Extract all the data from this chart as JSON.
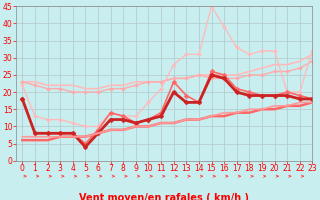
{
  "xlabel": "Vent moyen/en rafales ( km/h )",
  "background_color": "#c8eef0",
  "grid_color": "#b0c8ca",
  "xlim": [
    -0.5,
    23
  ],
  "ylim": [
    0,
    45
  ],
  "yticks": [
    0,
    5,
    10,
    15,
    20,
    25,
    30,
    35,
    40,
    45
  ],
  "xticks": [
    0,
    1,
    2,
    3,
    4,
    5,
    6,
    7,
    8,
    9,
    10,
    11,
    12,
    13,
    14,
    15,
    16,
    17,
    18,
    19,
    20,
    21,
    22,
    23
  ],
  "series": [
    {
      "x": [
        0,
        1,
        2,
        3,
        4,
        5,
        6,
        7,
        8,
        9,
        10,
        11,
        12,
        13,
        14,
        15,
        16,
        17,
        18,
        19,
        20,
        21,
        22,
        23
      ],
      "y": [
        23,
        23,
        22,
        22,
        22,
        21,
        21,
        22,
        22,
        23,
        23,
        23,
        24,
        24,
        25,
        25,
        25,
        25,
        26,
        27,
        28,
        28,
        29,
        31
      ],
      "color": "#ffbbbb",
      "linewidth": 1.2,
      "marker": null,
      "markersize": 0
    },
    {
      "x": [
        0,
        1,
        2,
        3,
        4,
        5,
        6,
        7,
        8,
        9,
        10,
        11,
        12,
        13,
        14,
        15,
        16,
        17,
        18,
        19,
        20,
        21,
        22,
        23
      ],
      "y": [
        23,
        22,
        21,
        21,
        20,
        20,
        20,
        21,
        21,
        22,
        23,
        23,
        24,
        24,
        25,
        24,
        24,
        24,
        25,
        25,
        26,
        26,
        27,
        29
      ],
      "color": "#ffaaaa",
      "linewidth": 1.0,
      "marker": "D",
      "markersize": 2.0
    },
    {
      "x": [
        0,
        1,
        2,
        3,
        4,
        5,
        6,
        7,
        8,
        9,
        10,
        11,
        12,
        13,
        14,
        15,
        16,
        17,
        18,
        19,
        20,
        21,
        22,
        23
      ],
      "y": [
        22,
        13,
        12,
        12,
        11,
        10,
        10,
        14,
        13,
        13,
        17,
        21,
        28,
        31,
        31,
        45,
        39,
        33,
        31,
        32,
        32,
        20,
        20,
        32
      ],
      "color": "#ffbbbb",
      "linewidth": 1.0,
      "marker": "D",
      "markersize": 2.0
    },
    {
      "x": [
        0,
        1,
        2,
        3,
        4,
        5,
        6,
        7,
        8,
        9,
        10,
        11,
        12,
        13,
        14,
        15,
        16,
        17,
        18,
        19,
        20,
        21,
        22,
        23
      ],
      "y": [
        18,
        8,
        8,
        8,
        8,
        5,
        9,
        14,
        13,
        11,
        12,
        14,
        23,
        19,
        17,
        26,
        25,
        21,
        20,
        19,
        19,
        20,
        19,
        18
      ],
      "color": "#ff6666",
      "linewidth": 1.2,
      "marker": "D",
      "markersize": 2.5
    },
    {
      "x": [
        0,
        1,
        2,
        3,
        4,
        5,
        6,
        7,
        8,
        9,
        10,
        11,
        12,
        13,
        14,
        15,
        16,
        17,
        18,
        19,
        20,
        21,
        22,
        23
      ],
      "y": [
        18,
        8,
        8,
        8,
        8,
        4,
        8,
        12,
        12,
        11,
        12,
        13,
        20,
        17,
        17,
        25,
        24,
        20,
        19,
        19,
        19,
        19,
        18,
        18
      ],
      "color": "#cc2222",
      "linewidth": 2.0,
      "marker": "D",
      "markersize": 2.5
    },
    {
      "x": [
        0,
        1,
        2,
        3,
        4,
        5,
        6,
        7,
        8,
        9,
        10,
        11,
        12,
        13,
        14,
        15,
        16,
        17,
        18,
        19,
        20,
        21,
        22,
        23
      ],
      "y": [
        6,
        6,
        6,
        7,
        7,
        7,
        8,
        9,
        9,
        10,
        10,
        11,
        11,
        12,
        12,
        13,
        13,
        14,
        14,
        15,
        15,
        16,
        16,
        17
      ],
      "color": "#ff6666",
      "linewidth": 1.8,
      "marker": null,
      "markersize": 0
    },
    {
      "x": [
        0,
        1,
        2,
        3,
        4,
        5,
        6,
        7,
        8,
        9,
        10,
        11,
        12,
        13,
        14,
        15,
        16,
        17,
        18,
        19,
        20,
        21,
        22,
        23
      ],
      "y": [
        7,
        7,
        7,
        7,
        7,
        7,
        8,
        9,
        9,
        10,
        10,
        11,
        11,
        12,
        12,
        13,
        14,
        14,
        15,
        15,
        16,
        16,
        17,
        17
      ],
      "color": "#ff9999",
      "linewidth": 1.2,
      "marker": null,
      "markersize": 0
    }
  ],
  "arrow_color": "#ff4444",
  "xlabel_color": "#ff0000",
  "xlabel_fontsize": 7,
  "tick_color": "#ff0000",
  "tick_fontsize": 5.5
}
